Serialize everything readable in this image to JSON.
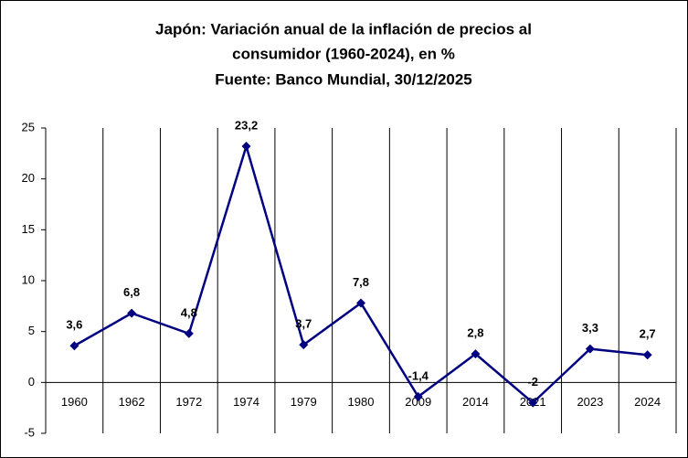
{
  "chart_data": {
    "type": "line",
    "title": [
      "Japón: Variación anual de la inflación de precios al",
      "consumidor (1960-2024), en %",
      "Fuente: Banco Mundial, 30/12/2025"
    ],
    "categories": [
      "1960",
      "1962",
      "1972",
      "1974",
      "1979",
      "1980",
      "2009",
      "2014",
      "2021",
      "2023",
      "2024"
    ],
    "values": [
      3.6,
      6.8,
      4.8,
      23.2,
      3.7,
      7.8,
      -1.4,
      2.8,
      -2,
      3.3,
      2.7
    ],
    "value_labels": [
      "3,6",
      "6,8",
      "4,8",
      "23,2",
      "3,7",
      "7,8",
      "-1,4",
      "2,8",
      "-2",
      "3,3",
      "2,7"
    ],
    "color": "#000080",
    "ylim": [
      -5,
      25
    ],
    "yticks": [
      -5,
      0,
      5,
      10,
      15,
      20,
      25
    ]
  }
}
